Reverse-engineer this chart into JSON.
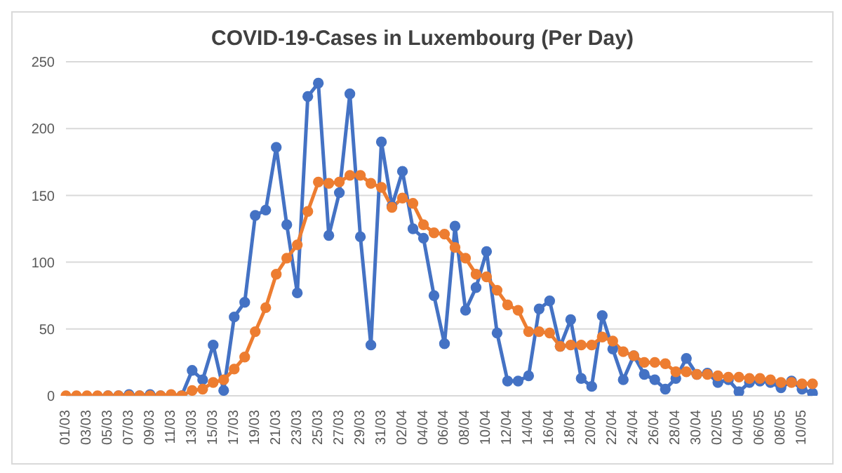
{
  "chart_data": {
    "type": "line",
    "title": "COVID-19-Cases in Luxembourg (Per Day)",
    "categories": [
      "01/03",
      null,
      "03/03",
      null,
      "05/03",
      null,
      "07/03",
      null,
      "09/03",
      null,
      "11/03",
      null,
      "13/03",
      null,
      "15/03",
      null,
      "17/03",
      null,
      "19/03",
      null,
      "21/03",
      null,
      "23/03",
      null,
      "25/03",
      null,
      "27/03",
      null,
      "29/03",
      null,
      "31/03",
      null,
      "02/04",
      null,
      "04/04",
      null,
      "06/04",
      null,
      "08/04",
      null,
      "10/04",
      null,
      "12/04",
      null,
      "14/04",
      null,
      "16/04",
      null,
      "18/04",
      null,
      "20/04",
      null,
      "22/04",
      null,
      "24/04",
      null,
      "26/04",
      null,
      "28/04",
      null,
      "30/04",
      null,
      "02/05",
      null,
      "04/05",
      null,
      "06/05",
      null,
      "08/05",
      null,
      "10/05",
      null
    ],
    "series": [
      {
        "color": "#4472c4",
        "values": [
          null,
          null,
          null,
          null,
          0,
          0,
          1,
          0,
          1,
          0,
          null,
          0,
          19,
          12,
          38,
          4,
          59,
          70,
          135,
          139,
          186,
          128,
          77,
          224,
          234,
          120,
          152,
          226,
          119,
          38,
          190,
          142,
          168,
          125,
          118,
          75,
          39,
          127,
          64,
          81,
          108,
          47,
          11,
          11,
          15,
          65,
          71,
          37,
          57,
          13,
          7,
          60,
          35,
          12,
          30,
          16,
          12,
          5,
          13,
          28,
          16,
          17,
          10,
          12,
          3,
          10,
          11,
          10,
          6,
          11,
          5,
          2
        ]
      },
      {
        "color": "#ed7d31",
        "values": [
          0,
          0,
          0,
          0,
          0,
          0,
          0,
          0,
          0,
          0,
          1,
          0,
          4,
          5,
          10,
          12,
          20,
          29,
          48,
          66,
          91,
          103,
          113,
          138,
          160,
          159,
          160,
          165,
          165,
          159,
          156,
          141,
          148,
          144,
          128,
          122,
          121,
          111,
          103,
          91,
          89,
          79,
          68,
          64,
          48,
          48,
          47,
          37,
          38,
          38,
          38,
          44,
          41,
          33,
          30,
          25,
          25,
          24,
          18,
          18,
          16,
          16,
          15,
          14,
          14,
          13,
          13,
          12,
          10,
          10,
          9,
          9
        ]
      }
    ],
    "ylim": [
      0,
      250
    ],
    "yticks": [
      0,
      50,
      100,
      150,
      200,
      250
    ],
    "grid": "y",
    "marker": "circle",
    "line_style": "solid",
    "legend": false
  }
}
